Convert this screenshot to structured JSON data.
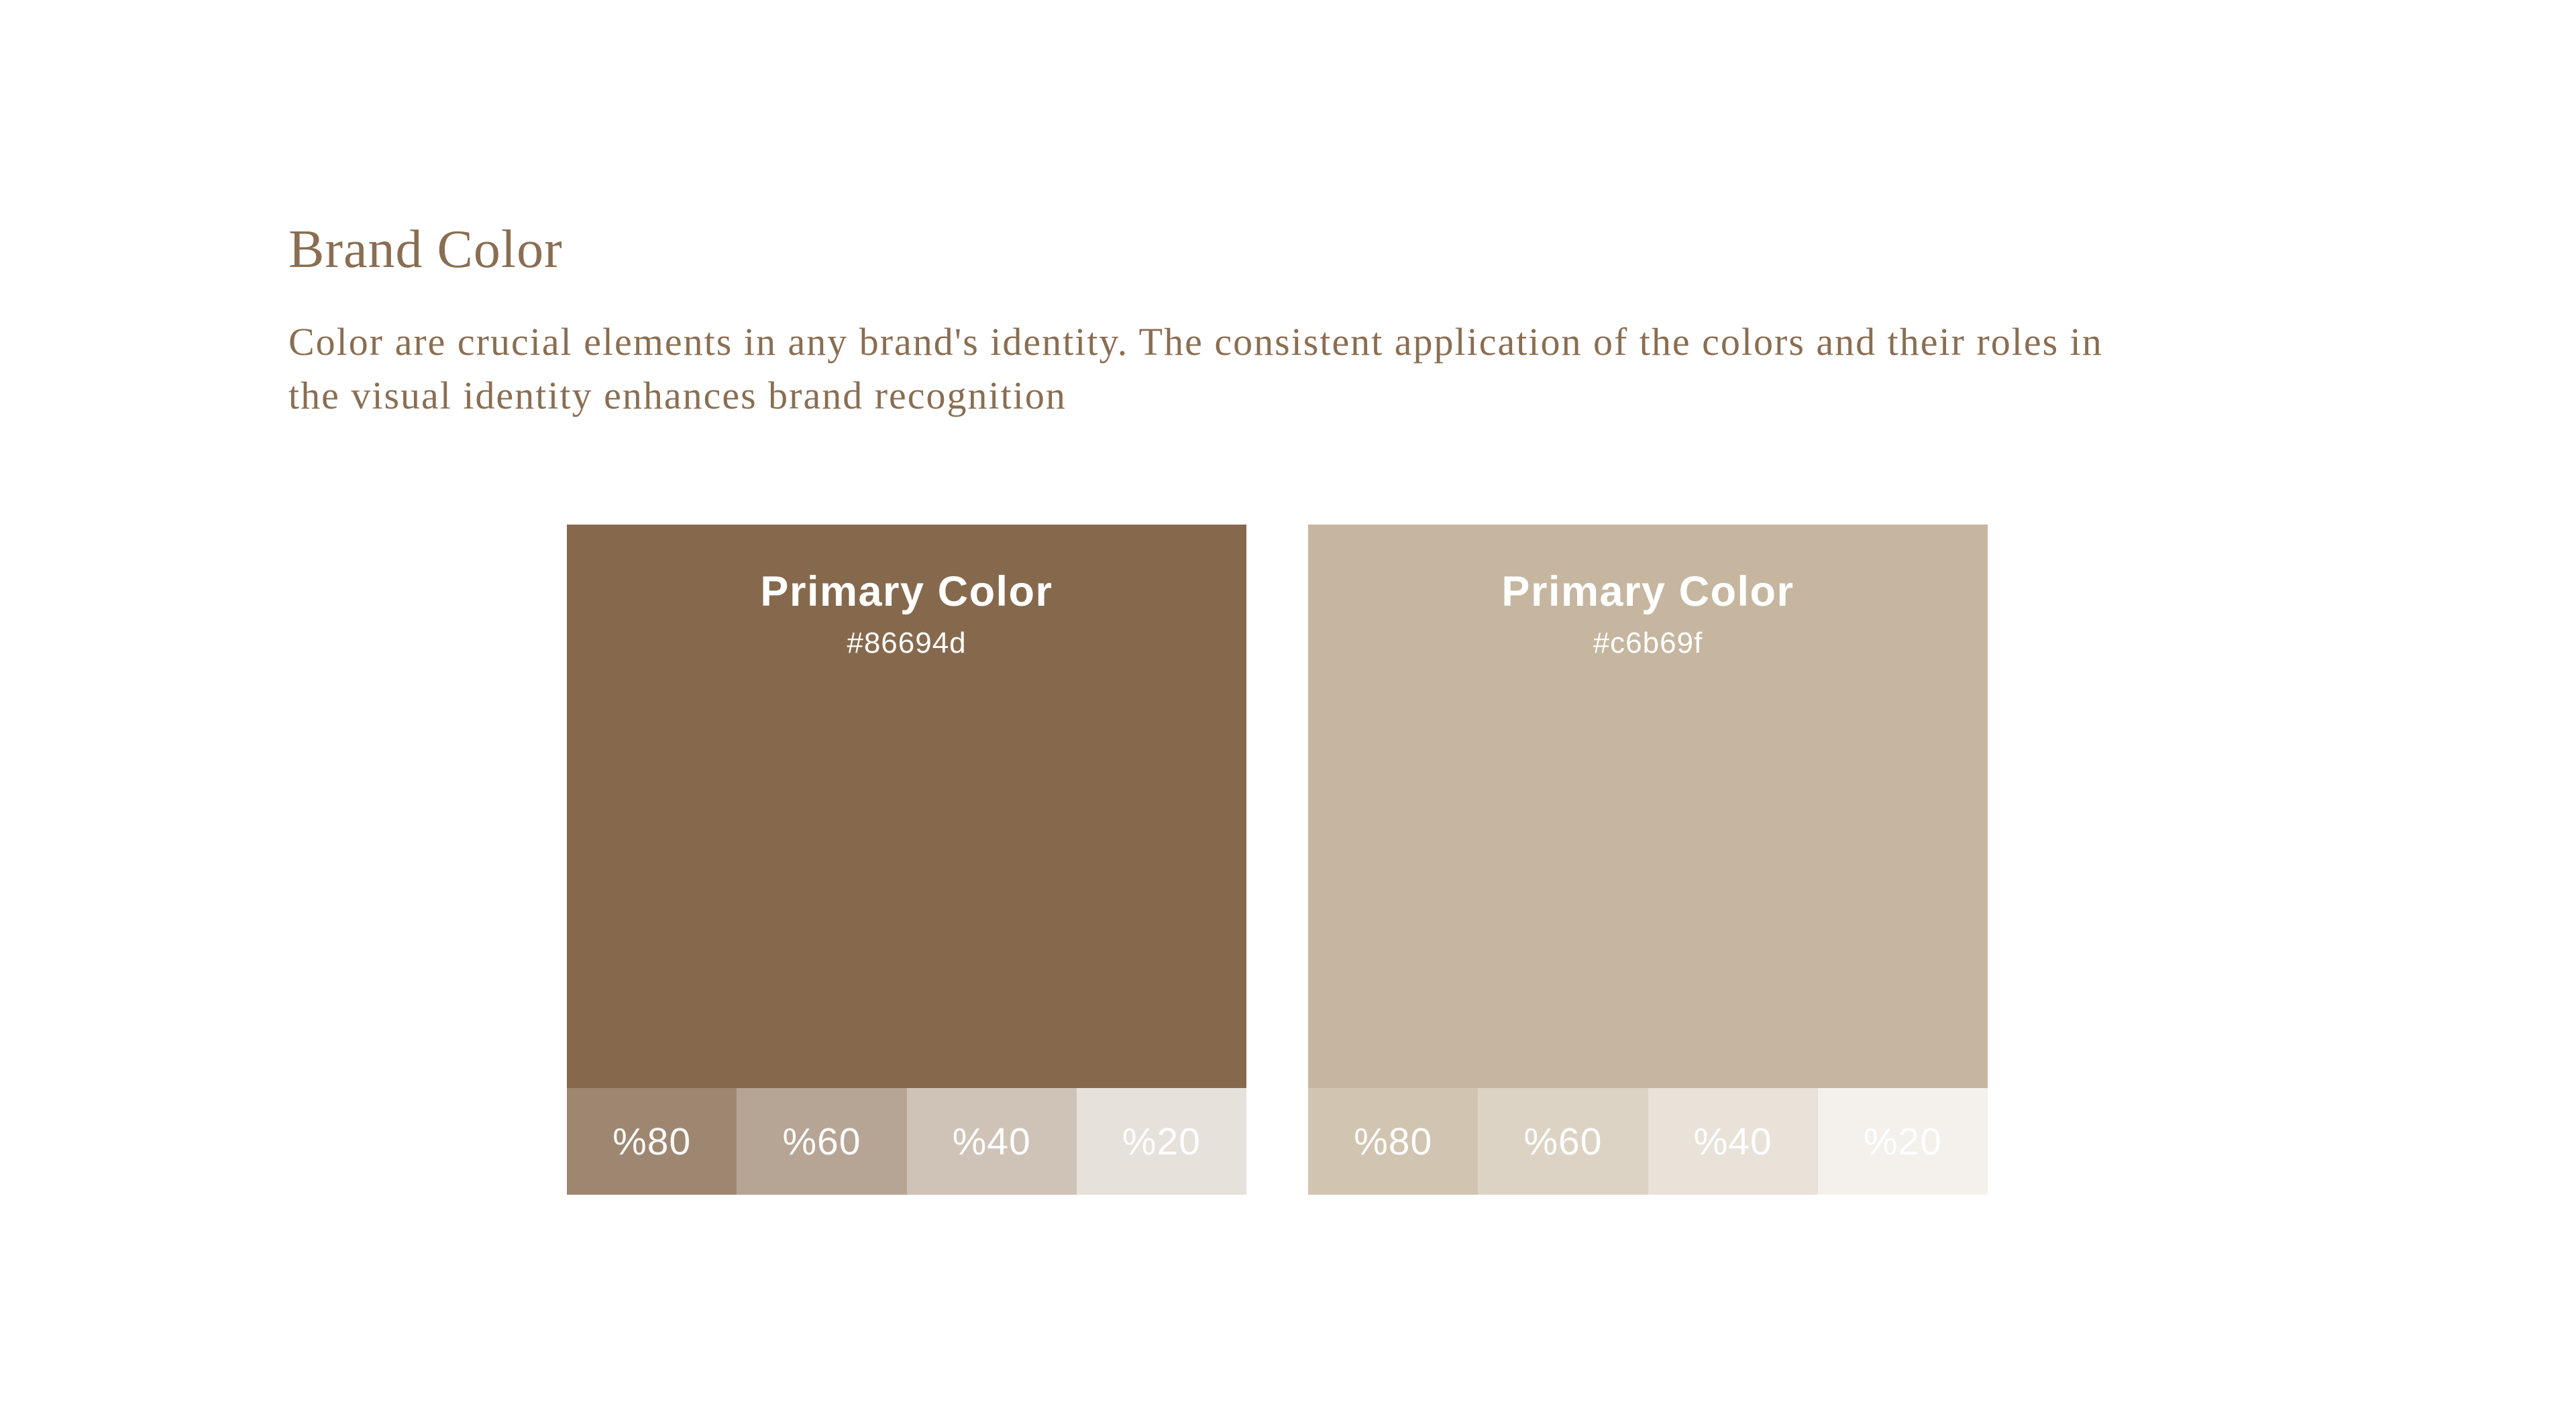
{
  "page": {
    "background": "#ffffff",
    "text_color": "#8a6e52"
  },
  "header": {
    "title": "Brand Color",
    "description_lines": [
      "Color are crucial elements in any brand's identity. The consistent application of the colors and their roles in",
      "the visual identity enhances brand recognition"
    ]
  },
  "cards": [
    {
      "name_label": "Primary Color",
      "hex_label": "#86694d",
      "base_color": "#86694d",
      "label_color": "#ffffff",
      "tints": [
        {
          "label": "%80",
          "color": "#9e8771"
        },
        {
          "label": "%60",
          "color": "#b6a595"
        },
        {
          "label": "%40",
          "color": "#cfc3b8"
        },
        {
          "label": "%20",
          "color": "#e7e1db"
        }
      ]
    },
    {
      "name_label": "Primary Color",
      "hex_label": "#c6b69f",
      "base_color": "#c6b69f",
      "label_color": "#ffffff",
      "tints": [
        {
          "label": "%80",
          "color": "#d1c5b2"
        },
        {
          "label": "%60",
          "color": "#ddd3c5"
        },
        {
          "label": "%40",
          "color": "#e8e2d9"
        },
        {
          "label": "%20",
          "color": "#f4f0ec"
        }
      ]
    }
  ]
}
